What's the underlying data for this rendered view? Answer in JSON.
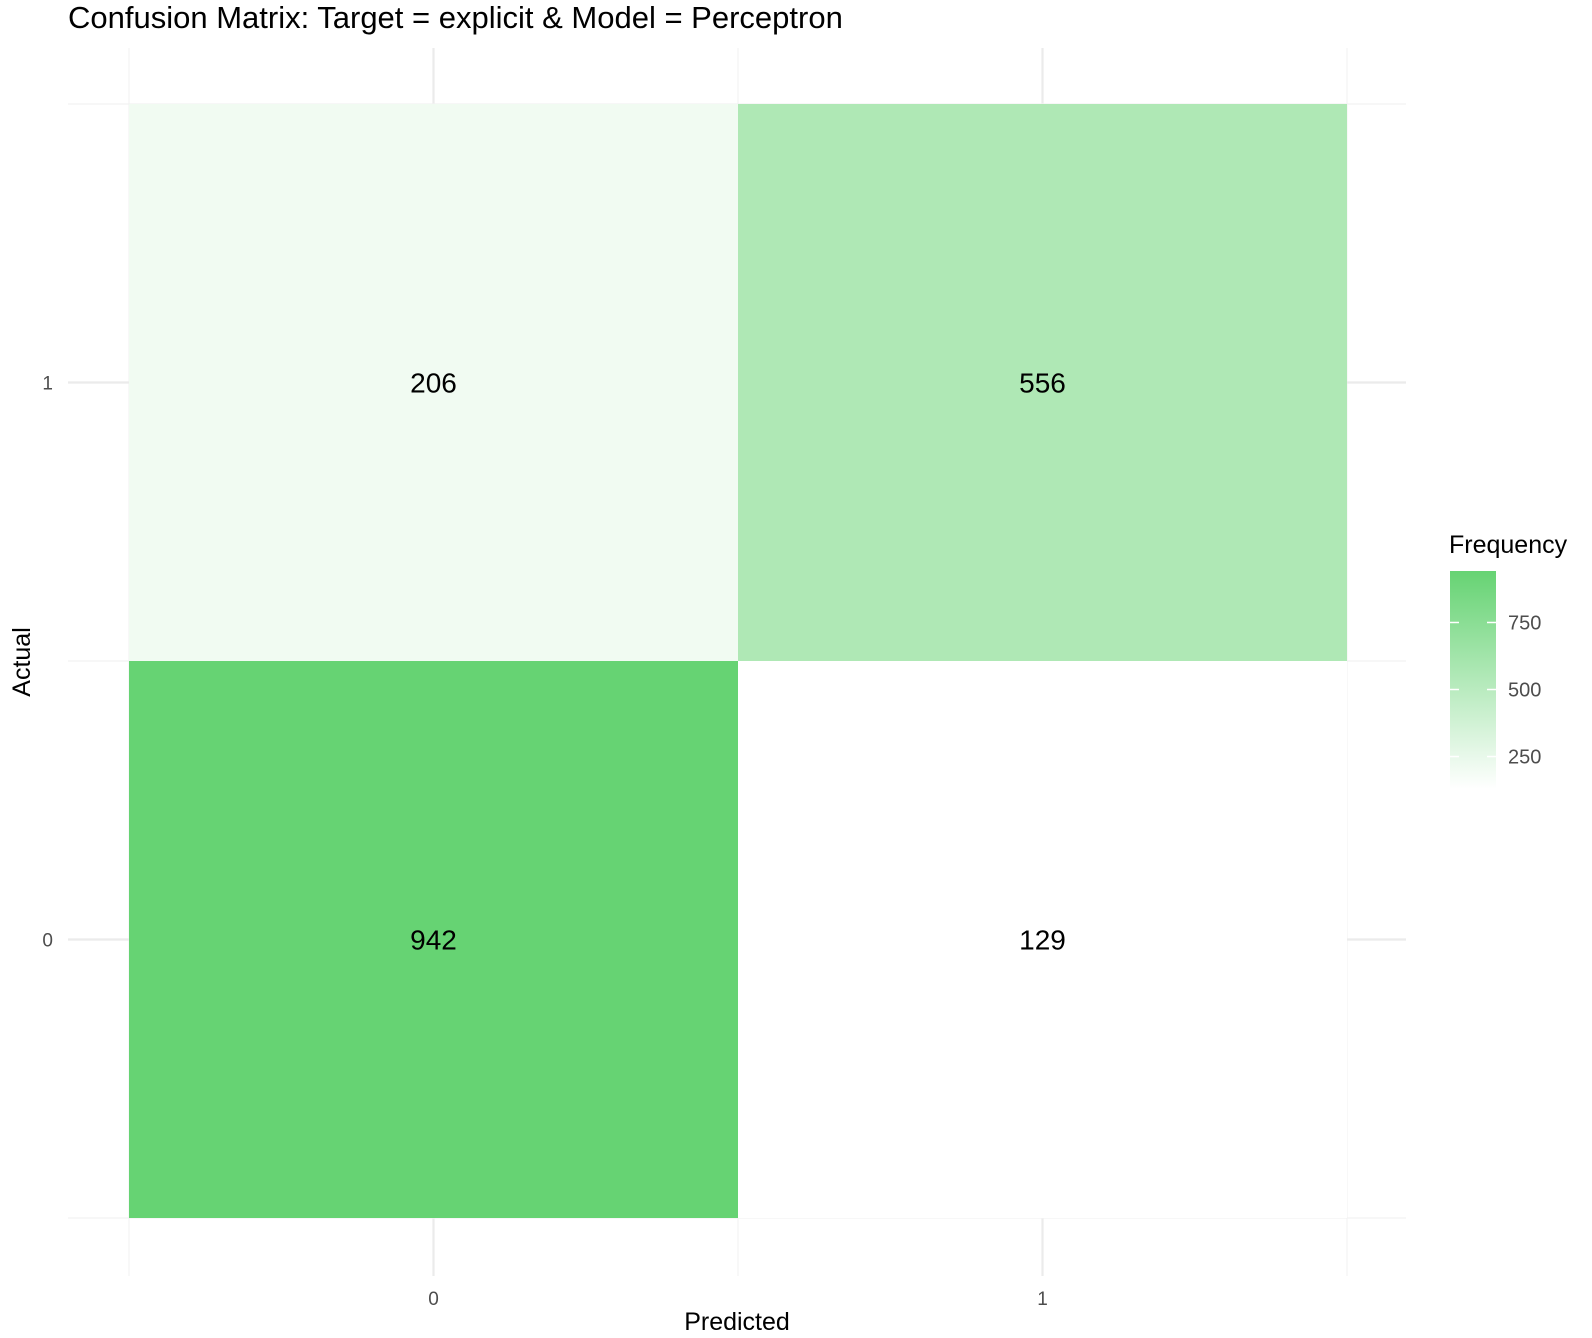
{
  "chart_data": {
    "type": "heatmap",
    "title": "Confusion Matrix: Target = explicit & Model = Perceptron",
    "xlabel": "Predicted",
    "ylabel": "Actual",
    "x_categories": [
      "0",
      "1"
    ],
    "y_categories": [
      "0",
      "1"
    ],
    "cells": [
      {
        "predicted": "0",
        "actual": "1",
        "value": 206
      },
      {
        "predicted": "1",
        "actual": "1",
        "value": 556
      },
      {
        "predicted": "0",
        "actual": "0",
        "value": 942
      },
      {
        "predicted": "1",
        "actual": "0",
        "value": 129
      }
    ],
    "legend": {
      "title": "Frequency",
      "ticks": [
        250,
        500,
        750
      ],
      "low_color": "#ffffff",
      "high_color": "#66d373",
      "range": [
        129,
        942
      ],
      "placement": "right"
    },
    "grid": true
  }
}
